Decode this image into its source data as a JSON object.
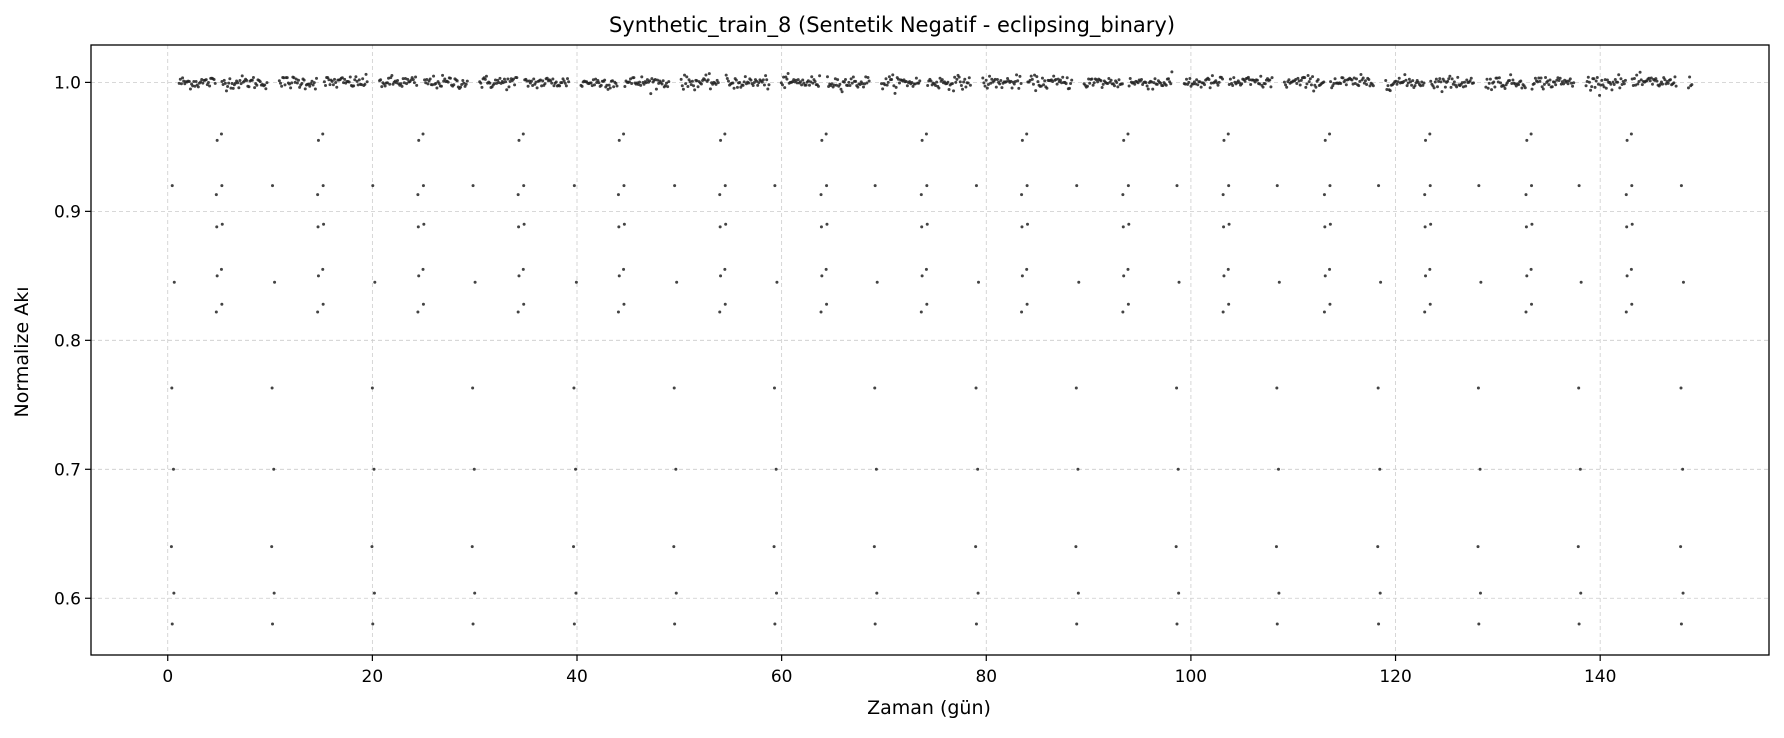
{
  "chart_data": {
    "type": "scatter",
    "title": "Synthetic_train_8 (Sentetik Negatif - eclipsing_binary)",
    "xlabel": "Zaman (gün)",
    "ylabel": "Normalize Akı",
    "xlim": [
      -7.5,
      156.5
    ],
    "ylim": [
      0.556,
      1.029
    ],
    "xticks": [
      0,
      20,
      40,
      60,
      80,
      100,
      120,
      140
    ],
    "xtick_labels": [
      "0",
      "20",
      "40",
      "60",
      "80",
      "100",
      "120",
      "140"
    ],
    "yticks": [
      0.6,
      0.7,
      0.8,
      0.9,
      1.0
    ],
    "ytick_labels": [
      "0.6",
      "0.7",
      "0.8",
      "0.9",
      "1.0"
    ],
    "grid": true,
    "legend": "none",
    "point_color": "#222222",
    "observation": {
      "time_start": 0.0,
      "time_end": 149.0,
      "baseline_flux": 1.0,
      "baseline_scatter": 0.0025
    },
    "eclipse_times": [
      0.5,
      10.3,
      20.1,
      29.9,
      39.8,
      49.6,
      59.4,
      69.2,
      79.1,
      88.9,
      98.7,
      108.5,
      118.4,
      128.2,
      138.0,
      148.0
    ],
    "eclipse_flux": [
      0.58,
      0.604,
      0.64,
      0.7,
      0.763,
      0.845,
      0.92
    ],
    "secondary_eclipse_times": [
      5.0,
      14.9,
      24.7,
      34.5,
      44.3,
      54.2,
      64.1,
      73.9,
      83.7,
      93.6,
      103.4,
      113.3,
      123.1,
      133.0,
      142.8
    ],
    "secondary_eclipse_flux": [
      0.822,
      0.828,
      0.85,
      0.855,
      0.888,
      0.89,
      0.913,
      0.92,
      0.955,
      0.96
    ]
  }
}
